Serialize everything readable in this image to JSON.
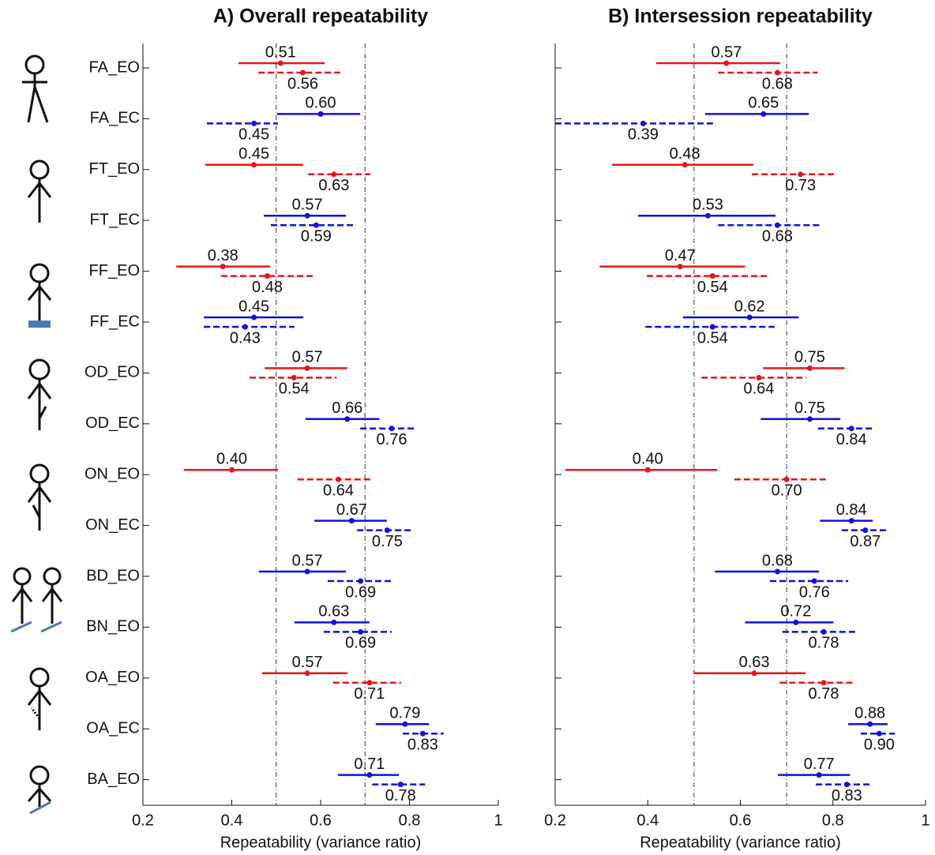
{
  "chart_data": [
    {
      "type": "forest",
      "title": "A) Overall repeatability",
      "x_label": "Repeatability (variance ratio)",
      "categories": [
        "FA_EO",
        "FA_EC",
        "FT_EO",
        "FT_EC",
        "FF_EO",
        "FF_EC",
        "OD_EO",
        "OD_EC",
        "ON_EO",
        "ON_EC",
        "BD_EO",
        "BN_EO",
        "OA_EO",
        "OA_EC",
        "BA_EO"
      ],
      "colors": [
        "#e8141a",
        "#1010e0",
        "#e8141a",
        "#1010e0",
        "#e8141a",
        "#1010e0",
        "#e8141a",
        "#1010e0",
        "#e8141a",
        "#1010e0",
        "#1010e0",
        "#1010e0",
        "#e8141a",
        "#1010e0",
        "#1010e0"
      ],
      "xlim": [
        0.2,
        1
      ],
      "xticks": [
        0.2,
        0.4,
        0.6,
        0.8,
        1
      ],
      "reference_lines": [
        0.5,
        0.7
      ],
      "series": [
        {
          "line_style": "solid",
          "values": [
            0.51,
            0.6,
            0.45,
            0.57,
            0.38,
            0.45,
            0.57,
            0.66,
            0.4,
            0.67,
            0.57,
            0.63,
            0.57,
            0.79,
            0.71
          ],
          "value_labels": [
            "0.51",
            "0.60",
            "0.45",
            "0.57",
            "0.38",
            "0.45",
            "0.57",
            "0.66",
            "0.40",
            "0.67",
            "0.57",
            "0.63",
            "0.57",
            "0.79",
            "0.71"
          ],
          "ci_low": [
            0.415,
            0.502,
            0.34,
            0.472,
            0.275,
            0.337,
            0.474,
            0.566,
            0.292,
            0.586,
            0.461,
            0.541,
            0.468,
            0.724,
            0.639
          ],
          "ci_high": [
            0.609,
            0.689,
            0.561,
            0.657,
            0.486,
            0.561,
            0.66,
            0.732,
            0.504,
            0.749,
            0.657,
            0.71,
            0.66,
            0.844,
            0.776
          ]
        },
        {
          "line_style": "dashed",
          "values": [
            0.56,
            0.45,
            0.63,
            0.59,
            0.48,
            0.43,
            0.54,
            0.76,
            0.64,
            0.75,
            0.69,
            0.69,
            0.71,
            0.83,
            0.78
          ],
          "value_labels": [
            "0.56",
            "0.45",
            "0.63",
            "0.59",
            "0.48",
            "0.43",
            "0.54",
            "0.76",
            "0.64",
            "0.75",
            "0.69",
            "0.69",
            "0.71",
            "0.83",
            "0.78"
          ],
          "ci_low": [
            0.46,
            0.344,
            0.572,
            0.488,
            0.376,
            0.337,
            0.44,
            0.689,
            0.548,
            0.682,
            0.616,
            0.607,
            0.628,
            0.785,
            0.716
          ],
          "ci_high": [
            0.644,
            0.504,
            0.712,
            0.675,
            0.584,
            0.541,
            0.636,
            0.815,
            0.712,
            0.804,
            0.76,
            0.76,
            0.781,
            0.877,
            0.835
          ]
        }
      ]
    },
    {
      "type": "forest",
      "title": "B) Intersession repeatability",
      "x_label": "Repeatability (variance ratio)",
      "colors": [
        "#e8141a",
        "#1010e0",
        "#e8141a",
        "#1010e0",
        "#e8141a",
        "#1010e0",
        "#e8141a",
        "#1010e0",
        "#e8141a",
        "#1010e0",
        "#1010e0",
        "#1010e0",
        "#e8141a",
        "#1010e0",
        "#1010e0"
      ],
      "xlim": [
        0.2,
        1
      ],
      "xticks": [
        0.2,
        0.4,
        0.6,
        0.8,
        1
      ],
      "reference_lines": [
        0.5,
        0.7
      ],
      "series": [
        {
          "line_style": "solid",
          "values": [
            0.57,
            0.65,
            0.48,
            0.53,
            0.47,
            0.62,
            0.75,
            0.75,
            0.4,
            0.84,
            0.68,
            0.72,
            0.63,
            0.88,
            0.77
          ],
          "value_labels": [
            "0.57",
            "0.65",
            "0.48",
            "0.53",
            "0.47",
            "0.62",
            "0.75",
            "0.75",
            "0.40",
            "0.84",
            "0.68",
            "0.72",
            "0.63",
            "0.88",
            "0.77"
          ],
          "ci_low": [
            0.418,
            0.524,
            0.323,
            0.379,
            0.296,
            0.476,
            0.649,
            0.644,
            0.222,
            0.772,
            0.545,
            0.61,
            0.499,
            0.833,
            0.681
          ],
          "ci_high": [
            0.686,
            0.748,
            0.628,
            0.676,
            0.61,
            0.726,
            0.825,
            0.816,
            0.55,
            0.886,
            0.77,
            0.801,
            0.741,
            0.918,
            0.837
          ]
        },
        {
          "line_style": "dashed",
          "values": [
            0.68,
            0.39,
            0.73,
            0.68,
            0.54,
            0.54,
            0.64,
            0.84,
            0.7,
            0.87,
            0.76,
            0.78,
            0.78,
            0.9,
            0.83
          ],
          "value_labels": [
            "0.68",
            "0.39",
            "0.73",
            "0.68",
            "0.54",
            "0.54",
            "0.64",
            "0.84",
            "0.70",
            "0.87",
            "0.76",
            "0.78",
            "0.78",
            "0.90",
            "0.83"
          ],
          "ci_low": [
            0.552,
            0.2,
            0.625,
            0.552,
            0.398,
            0.395,
            0.516,
            0.768,
            0.587,
            0.819,
            0.664,
            0.691,
            0.685,
            0.86,
            0.763
          ],
          "ci_high": [
            0.767,
            0.541,
            0.804,
            0.772,
            0.659,
            0.674,
            0.743,
            0.886,
            0.787,
            0.917,
            0.833,
            0.848,
            0.842,
            0.934,
            0.881
          ]
        }
      ]
    }
  ]
}
